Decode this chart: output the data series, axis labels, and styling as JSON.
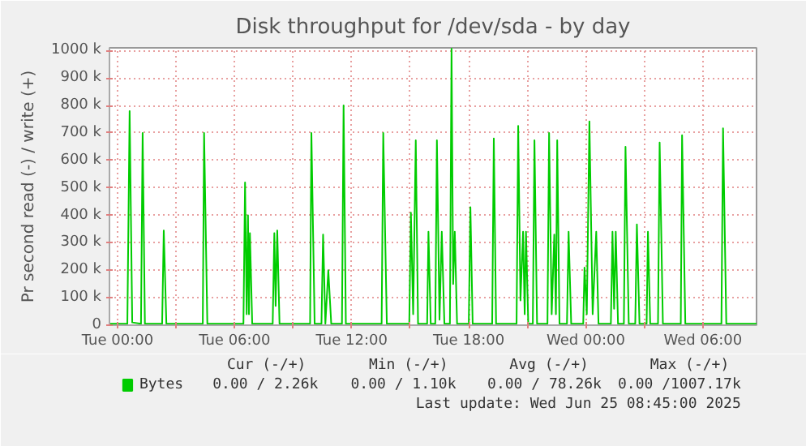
{
  "chart_data": {
    "type": "line",
    "title": "Disk throughput for /dev/sda - by day",
    "ylabel": "Pr second read (-) / write (+)",
    "x": [
      "2025-06-23T23:35",
      "2025-06-24T00:30",
      "2025-06-24T00:37",
      "2025-06-24T00:45",
      "2025-06-24T01:12",
      "2025-06-24T01:17",
      "2025-06-24T01:24",
      "2025-06-24T02:17",
      "2025-06-24T02:22",
      "2025-06-24T02:30",
      "2025-06-24T04:22",
      "2025-06-24T04:26",
      "2025-06-24T04:36",
      "2025-06-24T06:27",
      "2025-06-24T06:32",
      "2025-06-24T06:37",
      "2025-06-24T06:41",
      "2025-06-24T06:44",
      "2025-06-24T06:47",
      "2025-06-24T06:54",
      "2025-06-24T07:57",
      "2025-06-24T08:02",
      "2025-06-24T08:06",
      "2025-06-24T08:11",
      "2025-06-24T08:18",
      "2025-06-24T09:52",
      "2025-06-24T09:56",
      "2025-06-24T10:06",
      "2025-06-24T10:27",
      "2025-06-24T10:32",
      "2025-06-24T10:39",
      "2025-06-24T10:48",
      "2025-06-24T10:57",
      "2025-06-24T11:30",
      "2025-06-24T11:35",
      "2025-06-24T11:42",
      "2025-06-24T13:32",
      "2025-06-24T13:37",
      "2025-06-24T13:48",
      "2025-06-24T14:57",
      "2025-06-24T15:02",
      "2025-06-24T15:09",
      "2025-06-24T15:17",
      "2025-06-24T15:24",
      "2025-06-24T15:52",
      "2025-06-24T15:56",
      "2025-06-24T16:03",
      "2025-06-24T16:17",
      "2025-06-24T16:22",
      "2025-06-24T16:30",
      "2025-06-24T16:37",
      "2025-06-24T16:45",
      "2025-06-24T17:02",
      "2025-06-24T17:07",
      "2025-06-24T17:12",
      "2025-06-24T17:17",
      "2025-06-24T17:24",
      "2025-06-24T18:00",
      "2025-06-24T18:05",
      "2025-06-24T18:12",
      "2025-06-24T19:12",
      "2025-06-24T19:17",
      "2025-06-24T19:24",
      "2025-06-24T20:27",
      "2025-06-24T20:32",
      "2025-06-24T20:39",
      "2025-06-24T20:47",
      "2025-06-24T20:52",
      "2025-06-24T20:56",
      "2025-06-24T21:03",
      "2025-06-24T21:17",
      "2025-06-24T21:22",
      "2025-06-24T21:30",
      "2025-06-24T22:02",
      "2025-06-24T22:07",
      "2025-06-24T22:15",
      "2025-06-24T22:23",
      "2025-06-24T22:28",
      "2025-06-24T22:32",
      "2025-06-24T22:39",
      "2025-06-24T23:02",
      "2025-06-24T23:07",
      "2025-06-24T23:15",
      "2025-06-24T23:52",
      "2025-06-24T23:56",
      "2025-06-25T00:03",
      "2025-06-25T00:11",
      "2025-06-25T00:21",
      "2025-06-25T00:32",
      "2025-06-25T00:39",
      "2025-06-25T01:17",
      "2025-06-25T01:22",
      "2025-06-25T01:27",
      "2025-06-25T01:32",
      "2025-06-25T01:39",
      "2025-06-25T01:57",
      "2025-06-25T02:02",
      "2025-06-25T02:12",
      "2025-06-25T02:32",
      "2025-06-25T02:37",
      "2025-06-25T02:45",
      "2025-06-25T03:07",
      "2025-06-25T03:11",
      "2025-06-25T03:18",
      "2025-06-25T03:42",
      "2025-06-25T03:47",
      "2025-06-25T03:57",
      "2025-06-25T04:52",
      "2025-06-25T04:56",
      "2025-06-25T05:06",
      "2025-06-25T06:57",
      "2025-06-25T07:02",
      "2025-06-25T07:12",
      "2025-06-25T08:45"
    ],
    "ylim": [
      0,
      1010
    ],
    "xlim": [
      "2025-06-23T23:35",
      "2025-06-25T08:45"
    ],
    "xticks": [
      {
        "value": "2025-06-24T00:00",
        "label": "Tue 00:00"
      },
      {
        "value": "2025-06-24T03:00",
        "label": null
      },
      {
        "value": "2025-06-24T06:00",
        "label": "Tue 06:00"
      },
      {
        "value": "2025-06-24T09:00",
        "label": null
      },
      {
        "value": "2025-06-24T12:00",
        "label": "Tue 12:00"
      },
      {
        "value": "2025-06-24T15:00",
        "label": null
      },
      {
        "value": "2025-06-24T18:00",
        "label": "Tue 18:00"
      },
      {
        "value": "2025-06-24T21:00",
        "label": null
      },
      {
        "value": "2025-06-25T00:00",
        "label": "Wed 00:00"
      },
      {
        "value": "2025-06-25T03:00",
        "label": null
      },
      {
        "value": "2025-06-25T06:00",
        "label": "Wed 06:00"
      }
    ],
    "yticks": [
      0,
      {
        "value": 100,
        "label": "100 k"
      },
      {
        "value": 200,
        "label": "200 k"
      },
      {
        "value": 300,
        "label": "300 k"
      },
      {
        "value": 400,
        "label": "400 k"
      },
      {
        "value": 500,
        "label": "500 k"
      },
      {
        "value": 600,
        "label": "600 k"
      },
      {
        "value": 700,
        "label": "700 k"
      },
      {
        "value": 800,
        "label": "800 k"
      },
      {
        "value": 900,
        "label": "900 k"
      },
      {
        "value": 1000,
        "label": "1000 k"
      }
    ],
    "series": [
      {
        "name": "Bytes",
        "color": "#00cc00",
        "values": [
          5,
          5,
          780,
          10,
          5,
          700,
          5,
          5,
          345,
          5,
          5,
          700,
          5,
          5,
          520,
          40,
          400,
          40,
          335,
          5,
          5,
          335,
          70,
          345,
          5,
          5,
          700,
          5,
          5,
          330,
          5,
          200,
          5,
          5,
          800,
          5,
          5,
          700,
          5,
          5,
          410,
          40,
          673,
          5,
          5,
          340,
          5,
          5,
          673,
          20,
          340,
          5,
          5,
          1007,
          150,
          340,
          5,
          5,
          430,
          5,
          5,
          680,
          5,
          5,
          726,
          90,
          340,
          40,
          340,
          5,
          5,
          673,
          5,
          5,
          700,
          40,
          330,
          40,
          673,
          5,
          5,
          340,
          5,
          5,
          210,
          40,
          742,
          40,
          340,
          5,
          5,
          340,
          60,
          340,
          5,
          5,
          650,
          5,
          5,
          367,
          5,
          5,
          340,
          5,
          5,
          665,
          5,
          5,
          692,
          5,
          5,
          717,
          5,
          5
        ]
      }
    ],
    "grid": true,
    "legend": "bottom left",
    "annotations": [
      "Cur (-/+)",
      "Min (-/+)",
      "Avg (-/+)",
      "Max (-/+)",
      "0.00 /  2.26k",
      "0.00 /  1.10k",
      "0.00 / 78.26k",
      "0.00 /1007.17k",
      "Last update: Wed Jun 25 08:45:00 2025"
    ]
  }
}
